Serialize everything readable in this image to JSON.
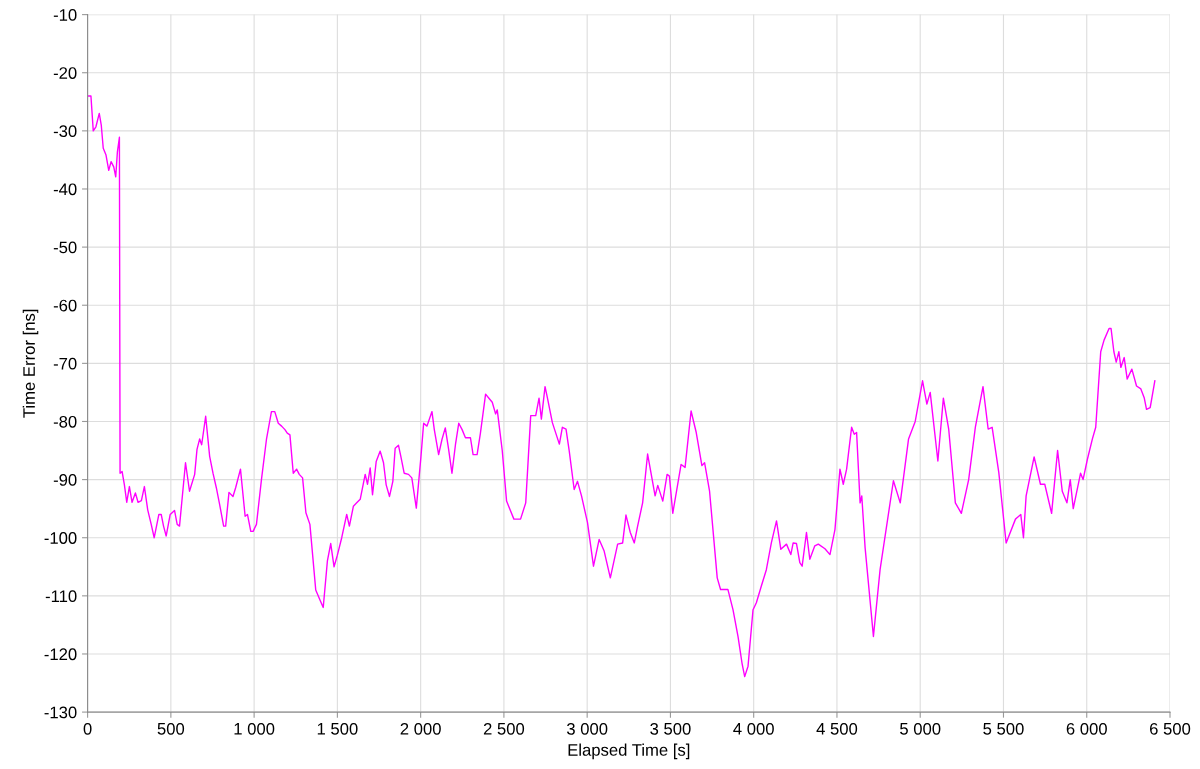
{
  "chart_data": {
    "type": "line",
    "xlabel": "Elapsed Time [s]",
    "ylabel": "Time Error [ns]",
    "xlim": [
      0,
      6500
    ],
    "ylim": [
      -130,
      -10
    ],
    "xticks": [
      0,
      500,
      {
        "value": 1000,
        "label": "1 000"
      },
      {
        "value": 1500,
        "label": "1 500"
      },
      {
        "value": 2000,
        "label": "2 000"
      },
      {
        "value": 2500,
        "label": "2 500"
      },
      {
        "value": 3000,
        "label": "3 000"
      },
      {
        "value": 3500,
        "label": "3 500"
      },
      {
        "value": 4000,
        "label": "4 000"
      },
      {
        "value": 4500,
        "label": "4 500"
      },
      {
        "value": 5000,
        "label": "5 000"
      },
      {
        "value": 5500,
        "label": "5 500"
      },
      {
        "value": 6000,
        "label": "6 000"
      },
      {
        "value": 6500,
        "label": "6 500"
      }
    ],
    "yticks": [
      -130,
      -120,
      -110,
      -100,
      -90,
      -80,
      -70,
      -60,
      -50,
      -40,
      -30,
      -20,
      -10
    ],
    "grid": true,
    "marker": "none",
    "line_style": "solid",
    "series": [
      {
        "color": "#ff00ff",
        "x": [
          6,
          20,
          34,
          50,
          70,
          82,
          94,
          110,
          127,
          141,
          157,
          169,
          179,
          191,
          195,
          207,
          221,
          235,
          251,
          267,
          287,
          303,
          323,
          341,
          361,
          382,
          400,
          428,
          442,
          456,
          472,
          496,
          522,
          538,
          552,
          588,
          612,
          643,
          657,
          673,
          685,
          709,
          733,
          753,
          773,
          793,
          817,
          829,
          849,
          873,
          889,
          918,
          946,
          960,
          980,
          994,
          1014,
          1044,
          1074,
          1104,
          1124,
          1145,
          1165,
          1185,
          1199,
          1215,
          1235,
          1255,
          1271,
          1291,
          1311,
          1335,
          1370,
          1400,
          1415,
          1440,
          1460,
          1480,
          1500,
          1526,
          1556,
          1572,
          1596,
          1616,
          1637,
          1667,
          1681,
          1697,
          1711,
          1733,
          1757,
          1777,
          1793,
          1813,
          1833,
          1847,
          1867,
          1881,
          1901,
          1927,
          1947,
          1974,
          2002,
          2018,
          2038,
          2068,
          2082,
          2108,
          2128,
          2148,
          2168,
          2188,
          2209,
          2229,
          2249,
          2269,
          2299,
          2315,
          2339,
          2359,
          2390,
          2410,
          2430,
          2450,
          2460,
          2490,
          2516,
          2560,
          2600,
          2631,
          2661,
          2691,
          2711,
          2725,
          2747,
          2761,
          2791,
          2833,
          2851,
          2873,
          2892,
          2922,
          2942,
          2966,
          3002,
          3038,
          3072,
          3102,
          3139,
          3183,
          3213,
          3233,
          3259,
          3283,
          3303,
          3333,
          3363,
          3408,
          3424,
          3454,
          3480,
          3494,
          3514,
          3564,
          3588,
          3624,
          3655,
          3689,
          3705,
          3735,
          3781,
          3801,
          3845,
          3876,
          3906,
          3930,
          3946,
          3966,
          3996,
          4016,
          4046,
          4076,
          4106,
          4137,
          4163,
          4197,
          4223,
          4237,
          4257,
          4277,
          4291,
          4317,
          4337,
          4367,
          4388,
          4428,
          4458,
          4488,
          4518,
          4538,
          4558,
          4588,
          4604,
          4618,
          4639,
          4649,
          4669,
          4719,
          4759,
          4839,
          4880,
          4930,
          4970,
          5014,
          5040,
          5060,
          5106,
          5139,
          5171,
          5211,
          5247,
          5291,
          5331,
          5377,
          5408,
          5432,
          5472,
          5516,
          5572,
          5604,
          5620,
          5636,
          5684,
          5722,
          5748,
          5789,
          5825,
          5853,
          5881,
          5901,
          5919,
          5963,
          5978,
          6004,
          6034,
          6054,
          6084,
          6104,
          6134,
          6146,
          6163,
          6177,
          6193,
          6205,
          6225,
          6243,
          6271,
          6299,
          6325,
          6345,
          6359,
          6381,
          6409
        ],
        "values": [
          -24,
          -24,
          -30,
          -29.3,
          -27,
          -29,
          -33,
          -34.1,
          -36.8,
          -35.3,
          -36.2,
          -37.9,
          -33.6,
          -31.1,
          -88.9,
          -88.6,
          -90.9,
          -93.9,
          -91.2,
          -93.9,
          -92.3,
          -93.9,
          -93.6,
          -91.2,
          -95.2,
          -97.7,
          -100,
          -96,
          -96,
          -98,
          -99.7,
          -96,
          -95.3,
          -97.7,
          -98,
          -87.1,
          -92,
          -89.1,
          -84.8,
          -83,
          -84,
          -79.1,
          -86,
          -88.9,
          -91.4,
          -94.3,
          -98,
          -98,
          -92.2,
          -92.9,
          -91.4,
          -88.2,
          -96.3,
          -96,
          -98.9,
          -98.9,
          -97.7,
          -90,
          -83.1,
          -78.3,
          -78.3,
          -80.3,
          -80.8,
          -81.4,
          -82,
          -82.3,
          -88.9,
          -88.2,
          -89.1,
          -89.7,
          -95.7,
          -97.7,
          -109,
          -111,
          -112,
          -104,
          -101,
          -105,
          -103,
          -100,
          -96,
          -98,
          -94.6,
          -94,
          -93.4,
          -89.1,
          -90.8,
          -88,
          -92.6,
          -86.9,
          -85.1,
          -87.1,
          -90.9,
          -92.9,
          -90.3,
          -84.6,
          -84.1,
          -86,
          -88.9,
          -89.1,
          -89.7,
          -94.9,
          -86,
          -80.3,
          -80.8,
          -78.3,
          -81.4,
          -85.7,
          -83.1,
          -81.1,
          -84.8,
          -88.9,
          -84,
          -80.3,
          -81.4,
          -82.8,
          -82.8,
          -85.7,
          -85.7,
          -82,
          -75.3,
          -76,
          -76.7,
          -78.7,
          -78,
          -85,
          -93.7,
          -96.8,
          -96.8,
          -94,
          -79,
          -79,
          -76,
          -79.6,
          -74,
          -75.9,
          -80.2,
          -83.9,
          -81,
          -81.3,
          -85,
          -91.7,
          -90.3,
          -92.8,
          -97.4,
          -104.9,
          -100.3,
          -102.3,
          -106.9,
          -101.1,
          -100.9,
          -96.1,
          -99.1,
          -100.9,
          -98,
          -94,
          -85.6,
          -92.8,
          -91,
          -93.7,
          -89.1,
          -89.4,
          -95.8,
          -87.4,
          -87.9,
          -78.2,
          -81.9,
          -87.6,
          -87.1,
          -92,
          -106.9,
          -108.9,
          -108.9,
          -112.4,
          -117,
          -121.6,
          -123.9,
          -122.1,
          -112.4,
          -111.2,
          -108.3,
          -105.5,
          -100.9,
          -97.1,
          -102,
          -101.1,
          -102.9,
          -100.9,
          -101,
          -104.3,
          -104.9,
          -99.1,
          -103.7,
          -101.4,
          -101.1,
          -101.9,
          -102.9,
          -98.6,
          -88.2,
          -90.8,
          -88.2,
          -81,
          -82.2,
          -81.9,
          -94,
          -92.8,
          -101.7,
          -117,
          -105.5,
          -90.2,
          -94,
          -83,
          -80,
          -73,
          -77,
          -75,
          -86.8,
          -76,
          -81.3,
          -94,
          -95.8,
          -90,
          -81,
          -74,
          -81.3,
          -81,
          -88.8,
          -100.9,
          -96.8,
          -96,
          -100,
          -92.8,
          -86.1,
          -90.8,
          -90.8,
          -95.8,
          -85,
          -92,
          -94,
          -90,
          -95,
          -88.9,
          -90,
          -86.5,
          -83,
          -81,
          -68,
          -66,
          -64,
          -64,
          -68,
          -69.8,
          -68,
          -70.7,
          -69,
          -72.7,
          -71,
          -73.9,
          -74.4,
          -75.9,
          -77.9,
          -77.6,
          -73
        ]
      }
    ]
  }
}
